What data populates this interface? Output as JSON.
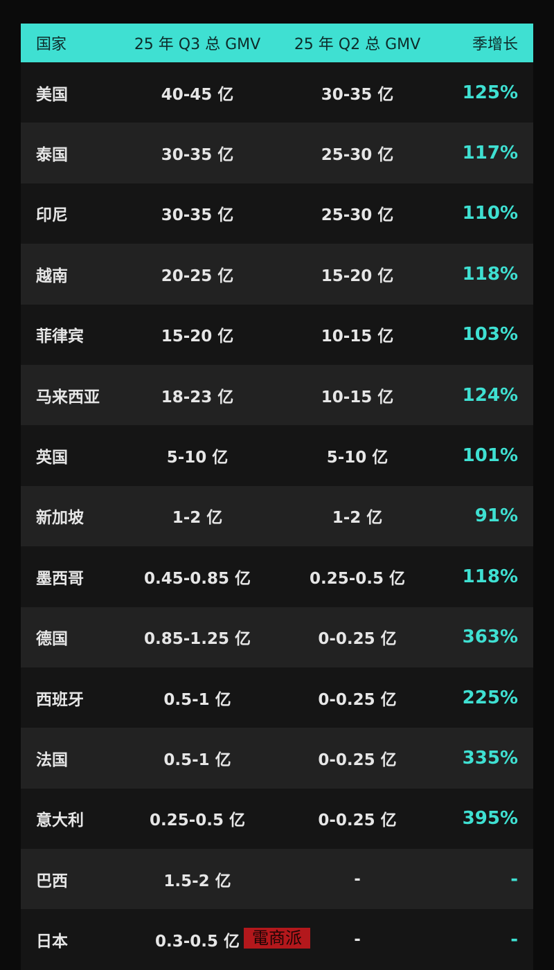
{
  "table": {
    "header": [
      "国家",
      "25 年 Q3 总 GMV",
      "25 年 Q2 总 GMV",
      "季增长"
    ],
    "rows": [
      [
        "美国",
        "40-45 亿",
        "30-35 亿",
        "125%"
      ],
      [
        "泰国",
        "30-35 亿",
        "25-30 亿",
        "117%"
      ],
      [
        "印尼",
        "30-35 亿",
        "25-30 亿",
        "110%"
      ],
      [
        "越南",
        "20-25 亿",
        "15-20 亿",
        "118%"
      ],
      [
        "菲律宾",
        "15-20 亿",
        "10-15 亿",
        "103%"
      ],
      [
        "马来西亚",
        "18-23 亿",
        "10-15 亿",
        "124%"
      ],
      [
        "英国",
        "5-10 亿",
        "5-10 亿",
        "101%"
      ],
      [
        "新加坡",
        "1-2 亿",
        "1-2 亿",
        "91%"
      ],
      [
        "墨西哥",
        "0.45-0.85 亿",
        "0.25-0.5 亿",
        "118%"
      ],
      [
        "德国",
        "0.85-1.25 亿",
        "0-0.25 亿",
        "363%"
      ],
      [
        "西班牙",
        "0.5-1 亿",
        "0-0.25 亿",
        "225%"
      ],
      [
        "法国",
        "0.5-1 亿",
        "0-0.25 亿",
        "335%"
      ],
      [
        "意大利",
        "0.25-0.5 亿",
        "0-0.25 亿",
        "395%"
      ],
      [
        "巴西",
        "1.5-2 亿",
        "-",
        "-"
      ],
      [
        "日本",
        "0.3-0.5 亿",
        "-",
        "-"
      ]
    ]
  },
  "watermark": "電商派"
}
